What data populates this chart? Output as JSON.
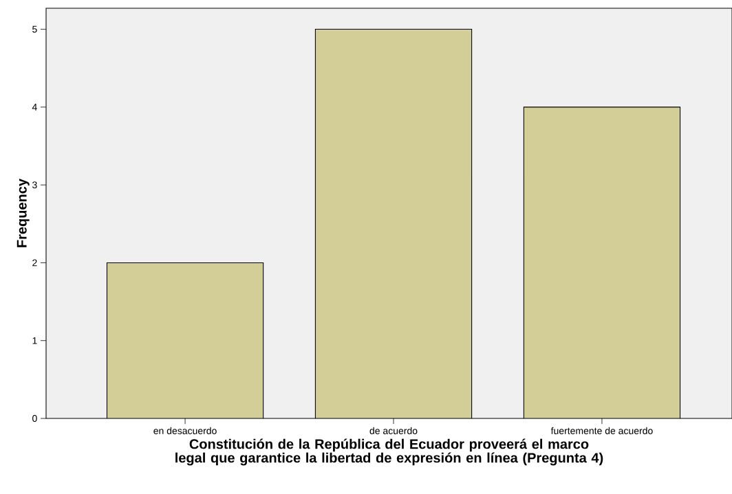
{
  "chart_data": {
    "type": "bar",
    "xlabel": "Constitución de la República del Ecuador proveerá el marco legal que garantice la libertad de expresión en línea (Pregunta 4)",
    "ylabel": "Frequency",
    "categories": [
      "en desacuerdo",
      "de acuerdo",
      "fuertemente de acuerdo"
    ],
    "values": [
      2,
      5,
      4
    ],
    "color": "#d3ce97",
    "ylim": [
      0,
      5.27
    ],
    "yticks": [
      0,
      1,
      2,
      3,
      4,
      5
    ]
  }
}
